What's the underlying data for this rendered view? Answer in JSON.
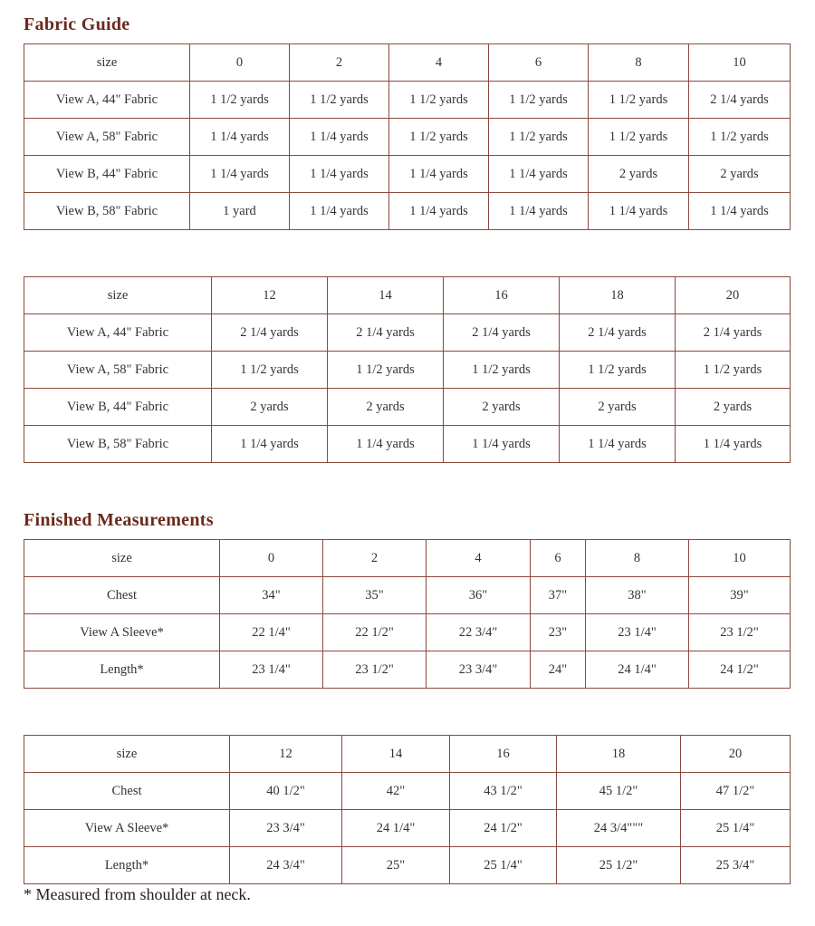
{
  "fabric_guide": {
    "title": "Fabric Guide",
    "tables": [
      {
        "rows": [
          [
            "size",
            "0",
            "2",
            "4",
            "6",
            "8",
            "10"
          ],
          [
            "View A, 44\" Fabric",
            "1 1/2 yards",
            "1 1/2 yards",
            "1 1/2 yards",
            "1 1/2 yards",
            "1 1/2 yards",
            "2 1/4 yards"
          ],
          [
            "View A, 58\" Fabric",
            "1 1/4 yards",
            "1 1/4 yards",
            "1 1/2 yards",
            "1 1/2 yards",
            "1 1/2 yards",
            "1 1/2 yards"
          ],
          [
            "View B, 44\" Fabric",
            "1 1/4 yards",
            "1 1/4 yards",
            "1 1/4 yards",
            "1 1/4 yards",
            "2 yards",
            "2 yards"
          ],
          [
            "View B, 58\" Fabric",
            "1 yard",
            "1 1/4 yards",
            "1 1/4 yards",
            "1 1/4 yards",
            "1 1/4 yards",
            "1 1/4 yards"
          ]
        ]
      },
      {
        "rows": [
          [
            "size",
            "12",
            "14",
            "16",
            "18",
            "20"
          ],
          [
            "View A, 44\" Fabric",
            "2 1/4 yards",
            "2 1/4 yards",
            "2 1/4 yards",
            "2 1/4 yards",
            "2 1/4 yards"
          ],
          [
            "View A, 58\" Fabric",
            "1 1/2 yards",
            "1 1/2 yards",
            "1 1/2 yards",
            "1 1/2 yards",
            "1 1/2 yards"
          ],
          [
            "View B, 44\" Fabric",
            "2 yards",
            "2 yards",
            "2 yards",
            "2 yards",
            "2 yards"
          ],
          [
            "View B, 58\" Fabric",
            "1 1/4 yards",
            "1 1/4 yards",
            "1 1/4 yards",
            "1 1/4 yards",
            "1 1/4 yards"
          ]
        ]
      }
    ]
  },
  "finished_measurements": {
    "title": "Finished Measurements",
    "tables": [
      {
        "rows": [
          [
            "size",
            "0",
            "2",
            "4",
            "6",
            "8",
            "10"
          ],
          [
            "Chest",
            "34\"",
            "35\"",
            "36\"",
            "37\"",
            "38\"",
            "39\""
          ],
          [
            "View A Sleeve*",
            "22 1/4\"",
            "22 1/2\"",
            "22 3/4\"",
            "23\"",
            "23 1/4\"",
            "23 1/2\""
          ],
          [
            "Length*",
            "23 1/4\"",
            "23 1/2\"",
            "23 3/4\"",
            "24\"",
            "24 1/4\"",
            "24 1/2\""
          ]
        ]
      },
      {
        "rows": [
          [
            "size",
            "12",
            "14",
            "16",
            "18",
            "20"
          ],
          [
            "Chest",
            "40 1/2\"",
            "42\"",
            "43 1/2\"",
            "45 1/2\"",
            "47 1/2\""
          ],
          [
            "View A Sleeve*",
            "23 3/4\"",
            "24 1/4\"",
            "24 1/2\"",
            "24 3/4\"\"\"",
            "25 1/4\""
          ],
          [
            "Length*",
            "24 3/4\"",
            "25\"",
            "25 1/4\"",
            "25 1/2\"",
            "25 3/4\""
          ]
        ]
      }
    ],
    "footnote": "* Measured from shoulder at neck."
  }
}
